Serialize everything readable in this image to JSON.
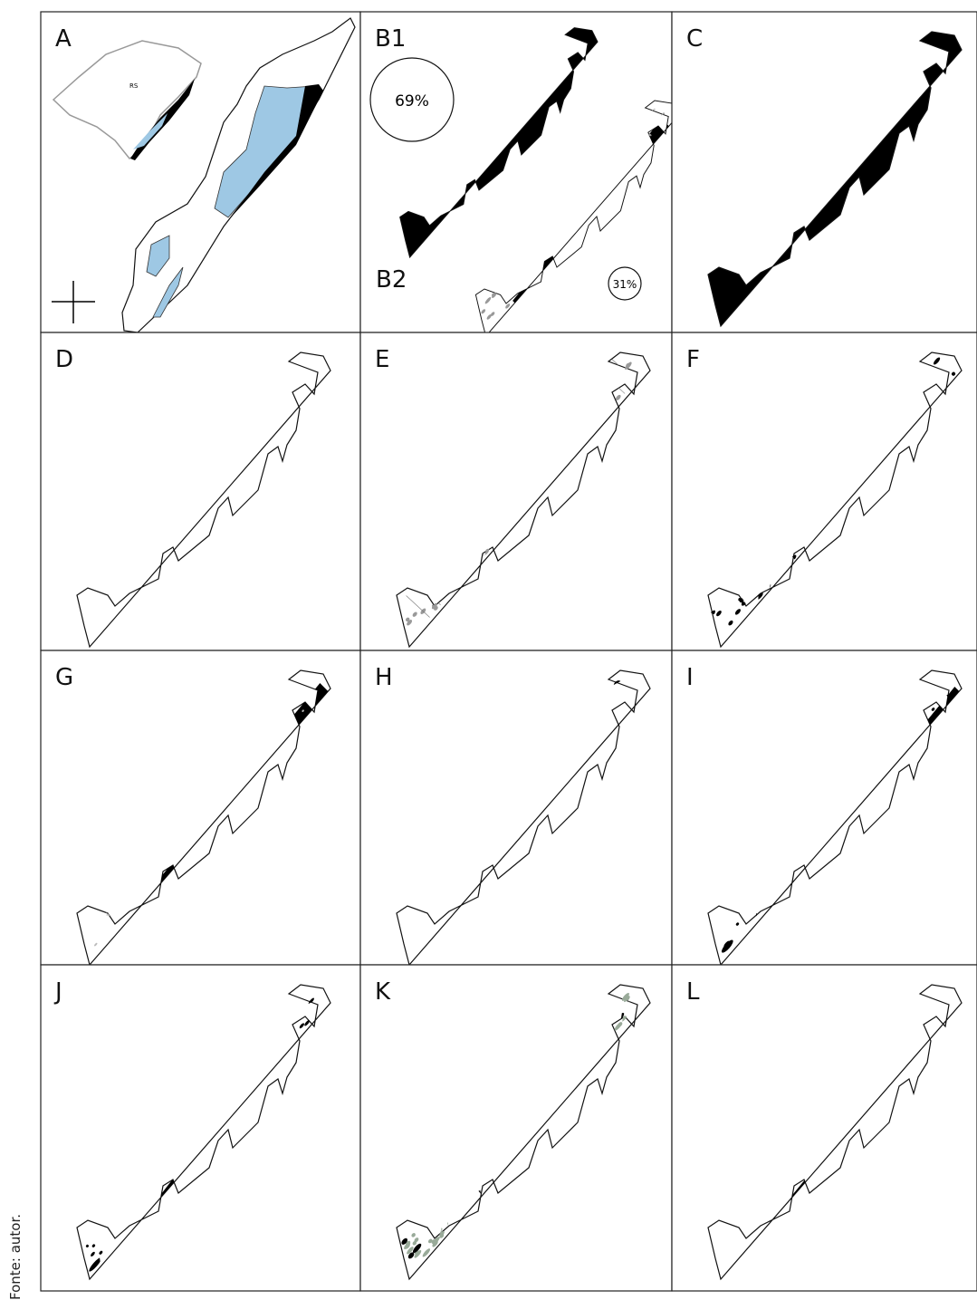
{
  "panels": [
    "A",
    "B1",
    "C",
    "D",
    "E",
    "F",
    "G",
    "H",
    "I",
    "J",
    "K",
    "L"
  ],
  "inset_label": "RS",
  "b1_share": "69%",
  "b2_label": "B2",
  "b2_share": "31%",
  "source": "Fonte: autor."
}
